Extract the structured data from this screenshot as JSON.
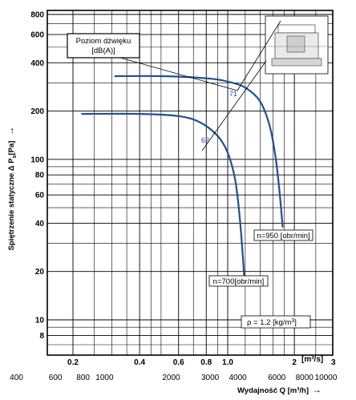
{
  "chart_data": {
    "type": "line",
    "y_scale": "log",
    "x_scale": "log",
    "ylim": [
      6,
      800
    ],
    "xlim_m3s": [
      0.18,
      3.0
    ],
    "grid": true,
    "ylabel": "Spiętrzenie statyczne Δ P",
    "ylabel_sub": "s",
    "ylabel_unit": "[Pa]",
    "ylabel_arrow": "→",
    "xlabel": "Wydajność Q [m³/h]",
    "xlabel_arrow": "→",
    "x_top_unit": "[m³/s]",
    "y_ticks": [
      "800",
      "600",
      "400",
      "200",
      "100",
      "80",
      "60",
      "40",
      "20",
      "10",
      "8"
    ],
    "y_tick_values": [
      800,
      600,
      400,
      200,
      100,
      80,
      60,
      40,
      20,
      10,
      8
    ],
    "x_top_ticks": [
      "0.2",
      "0.4",
      "0.6",
      "0.8",
      "1.0",
      "2",
      "3"
    ],
    "x_top_values": [
      0.2,
      0.4,
      0.6,
      0.8,
      1.0,
      2,
      3
    ],
    "x_bottom_ticks": [
      "400",
      "600",
      "800",
      "1000",
      "2000",
      "3000",
      "4000",
      "6000",
      "8000",
      "10000"
    ],
    "x_bottom_values": [
      400,
      600,
      800,
      1000,
      2000,
      3000,
      4000,
      6000,
      8000,
      10000
    ],
    "series": [
      {
        "name": "n=950 [obr/min]",
        "color": "#1f4e99",
        "points_m3s_pa": [
          [
            0.31,
            330
          ],
          [
            0.5,
            330
          ],
          [
            0.8,
            320
          ],
          [
            1.0,
            305
          ],
          [
            1.2,
            280
          ],
          [
            1.4,
            230
          ],
          [
            1.55,
            160
          ],
          [
            1.65,
            100
          ],
          [
            1.72,
            60
          ],
          [
            1.77,
            38
          ]
        ]
      },
      {
        "name": "n=700[obr/min]",
        "color": "#1f4e99",
        "points_m3s_pa": [
          [
            0.22,
            192
          ],
          [
            0.4,
            192
          ],
          [
            0.6,
            186
          ],
          [
            0.75,
            170
          ],
          [
            0.9,
            140
          ],
          [
            1.0,
            110
          ],
          [
            1.08,
            75
          ],
          [
            1.13,
            45
          ],
          [
            1.17,
            25
          ],
          [
            1.19,
            17.5
          ]
        ]
      }
    ],
    "annotations": {
      "noise_box_line1": "Poziom dźwięku",
      "noise_box_line2": "[dB(A)]",
      "noise_71": "71",
      "noise_62": "62",
      "rho_prefix": "ρ = 1,2 [kg/m",
      "rho_sup": "3",
      "rho_suffix": "]"
    }
  }
}
